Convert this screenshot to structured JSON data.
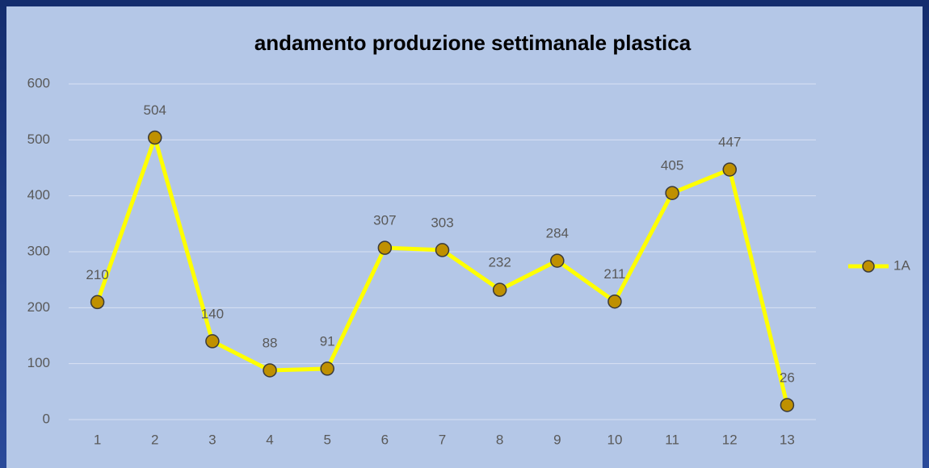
{
  "chart_data": {
    "type": "line",
    "title": "andamento produzione settimanale plastica",
    "categories": [
      "1",
      "2",
      "3",
      "4",
      "5",
      "6",
      "7",
      "8",
      "9",
      "10",
      "11",
      "12",
      "13"
    ],
    "series": [
      {
        "name": "1A",
        "color": "#ffff00",
        "marker_color": "#bf9000",
        "values": [
          210,
          504,
          140,
          88,
          91,
          307,
          303,
          232,
          284,
          211,
          405,
          447,
          26
        ]
      }
    ],
    "ylim": [
      0,
      600
    ],
    "yticks": [
      0,
      100,
      200,
      300,
      400,
      500,
      600
    ],
    "grid": true,
    "legend": "right",
    "data_labels": true
  }
}
